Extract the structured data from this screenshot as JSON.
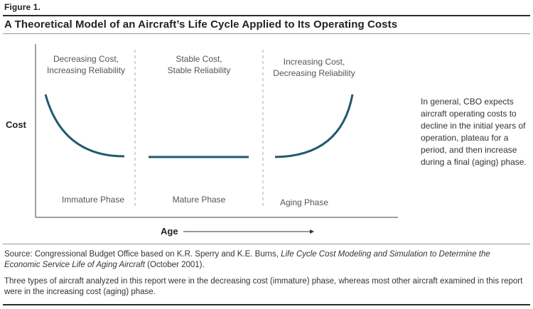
{
  "figure_label": "Figure 1.",
  "title": "A Theoretical Model of an Aircraft’s Life Cycle Applied to Its Operating Costs",
  "axes": {
    "y_label": "Cost",
    "x_label": "Age"
  },
  "phases": [
    {
      "header_line1": "Decreasing Cost,",
      "header_line2": "Increasing Reliability",
      "footer": "Immature Phase",
      "trend": "decreasing"
    },
    {
      "header_line1": "Stable Cost,",
      "header_line2": "Stable Reliability",
      "footer": "Mature Phase",
      "trend": "flat"
    },
    {
      "header_line1": "Increasing Cost,",
      "header_line2": "Decreasing Reliability",
      "footer": "Aging Phase",
      "trend": "increasing"
    }
  ],
  "side_note": "In general, CBO expects aircraft operating costs to decline in the initial years of operation, plateau for a period, and then increase during a final (aging) phase.",
  "source": {
    "prefix": "Source: Congressional Budget Office based on K.R. Sperry and K.E. Burns, ",
    "italic": "Life Cycle Cost Modeling and Simulation to Determine the Economic Service Life of Aging Aircraft",
    "suffix": " (October 2001)."
  },
  "note": "Three types of aircraft analyzed in this report were in the decreasing cost (immature) phase, whereas most other aircraft examined in this report were in the increasing cost (aging) phase.",
  "colors": {
    "curve": "#1f5a6b",
    "axis": "#666666",
    "divider": "#aaaaaa"
  }
}
